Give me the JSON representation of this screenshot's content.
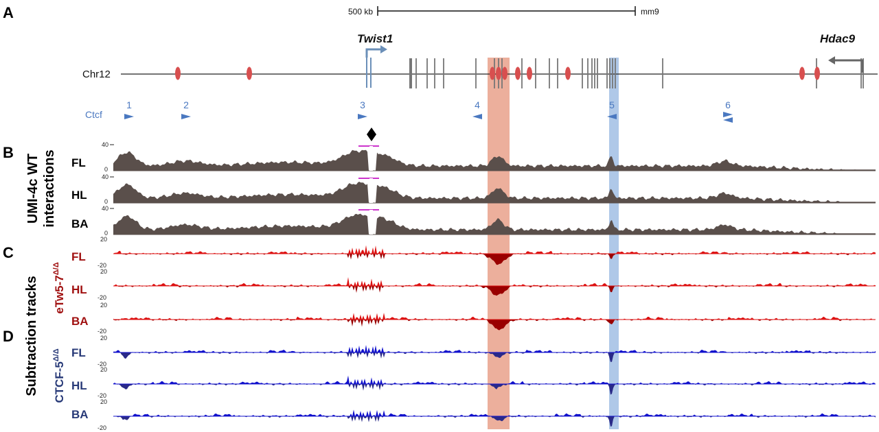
{
  "panel_labels": [
    "A",
    "B",
    "C",
    "D"
  ],
  "scale_bar": {
    "label": "500 kb",
    "assembly": "mm9"
  },
  "chromosome": "Chr12",
  "genes": [
    {
      "name": "Twist1",
      "strand": "+"
    },
    {
      "name": "Hdac9",
      "strand": "-"
    }
  ],
  "ctcf": {
    "label": "Ctcf",
    "sites": [
      {
        "id": "1",
        "orientation": "right"
      },
      {
        "id": "2",
        "orientation": "right"
      },
      {
        "id": "3",
        "orientation": "right"
      },
      {
        "id": "4",
        "orientation": "left"
      },
      {
        "id": "5",
        "orientation": "left"
      },
      {
        "id": "6",
        "orientation": "both"
      }
    ]
  },
  "side_labels": {
    "umi": [
      "UMI-4c WT",
      "interactions"
    ],
    "subtraction": "Subtraction tracks",
    "etw": "eTw5-7",
    "etw_sup": "Δ/Δ",
    "ctcf5": "CTCF-5",
    "ctcf5_sup": "Δ/Δ"
  },
  "tissues": [
    "FL",
    "HL",
    "BA"
  ],
  "axis": {
    "wt_max": "40",
    "wt_min": "0",
    "sub_max": "20",
    "sub_min": "-20"
  },
  "colors": {
    "wt": "#5a4f4b",
    "etw": "#dd1111",
    "etw_dark": "#990000",
    "ctcf5": "#1010cc",
    "ctcf5_dark": "#2a2a88",
    "ctcf_site": "#4a78c0",
    "enhancer": "#d84f4f",
    "highlight_red": "#e07a5a",
    "highlight_blue": "#7aa4d8",
    "gene": "#777777"
  }
}
